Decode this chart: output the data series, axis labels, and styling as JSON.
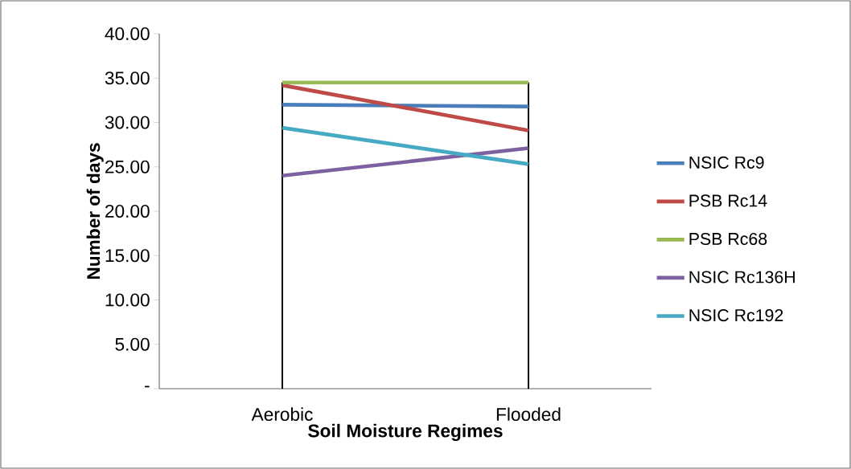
{
  "chart_data": {
    "type": "line",
    "xlabel": "Soil Moisture  Regimes",
    "ylabel": "Number of days",
    "categories": [
      "Aerobic",
      "Flooded"
    ],
    "series": [
      {
        "name": "NSIC Rc9",
        "color": "#4a7ebb",
        "values": [
          32.0,
          31.8
        ]
      },
      {
        "name": "PSB Rc14",
        "color": "#be4b48",
        "values": [
          34.2,
          29.1
        ]
      },
      {
        "name": "PSB Rc68",
        "color": "#98b954",
        "values": [
          34.5,
          34.5
        ]
      },
      {
        "name": "NSIC Rc136H",
        "color": "#7d60a0",
        "values": [
          24.0,
          27.1
        ]
      },
      {
        "name": "NSIC Rc192",
        "color": "#46aac5",
        "values": [
          29.4,
          25.3
        ]
      }
    ],
    "ylim": [
      0,
      40
    ],
    "yticks": [
      {
        "value": 0,
        "label": "-"
      },
      {
        "value": 5,
        "label": "5.00"
      },
      {
        "value": 10,
        "label": "10.00"
      },
      {
        "value": 15,
        "label": "15.00"
      },
      {
        "value": 20,
        "label": "20.00"
      },
      {
        "value": 25,
        "label": "25.00"
      },
      {
        "value": 30,
        "label": "30.00"
      },
      {
        "value": 35,
        "label": "35.00"
      },
      {
        "value": 40,
        "label": "40.00"
      }
    ],
    "legend": "right",
    "grid": "x",
    "marker": "none",
    "line_style": "solid"
  }
}
